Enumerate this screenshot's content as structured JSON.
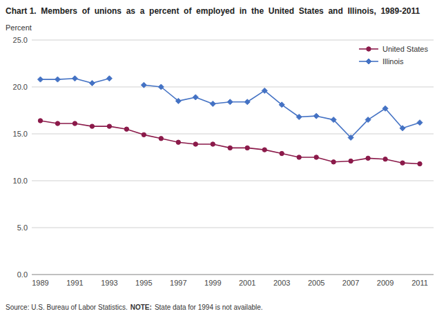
{
  "chart_data": {
    "type": "line",
    "title": "Chart 1.  Members  of  unions  as  a  percent  of  employed  in  the  United  States  and  Illinois,  1989-2011",
    "y_label": "Percent",
    "annotations": [
      "Source: U.S. Bureau of Labor Statistics.",
      "NOTE:",
      "State data for 1994 is not available."
    ],
    "x": [
      1989,
      1990,
      1991,
      1992,
      1993,
      1994,
      1995,
      1996,
      1997,
      1998,
      1999,
      2000,
      2001,
      2002,
      2003,
      2004,
      2005,
      2006,
      2007,
      2008,
      2009,
      2010,
      2011
    ],
    "series": [
      {
        "name": "United States",
        "color": "#8B1A4A",
        "marker": "circle",
        "values": [
          16.4,
          16.1,
          16.1,
          15.8,
          15.8,
          15.5,
          14.9,
          14.5,
          14.1,
          13.9,
          13.9,
          13.5,
          13.5,
          13.3,
          12.9,
          12.5,
          12.5,
          12.0,
          12.1,
          12.4,
          12.3,
          11.9,
          11.8
        ]
      },
      {
        "name": "Illinois",
        "color": "#4472C4",
        "marker": "diamond",
        "values": [
          20.8,
          20.8,
          20.9,
          20.4,
          20.9,
          null,
          20.2,
          20.0,
          18.5,
          18.9,
          18.2,
          18.4,
          18.4,
          19.6,
          18.1,
          16.8,
          16.9,
          16.5,
          14.6,
          16.5,
          17.7,
          15.6,
          16.2
        ]
      }
    ],
    "xlim": [
      1988.5,
      2011.8
    ],
    "xticks": [
      1989,
      1991,
      1993,
      1995,
      1997,
      1999,
      2001,
      2003,
      2005,
      2007,
      2009,
      2011
    ],
    "ylim": [
      0.0,
      25.0
    ],
    "yticks": [
      {
        "value": 0.0,
        "label": "0.0"
      },
      {
        "value": 5.0,
        "label": "5.0"
      },
      {
        "value": 10.0,
        "label": "10.0"
      },
      {
        "value": 15.0,
        "label": "15.0"
      },
      {
        "value": 20.0,
        "label": "20.0"
      },
      {
        "value": 25.0,
        "label": "25.0"
      }
    ],
    "grid": true,
    "legend": "upper right"
  }
}
